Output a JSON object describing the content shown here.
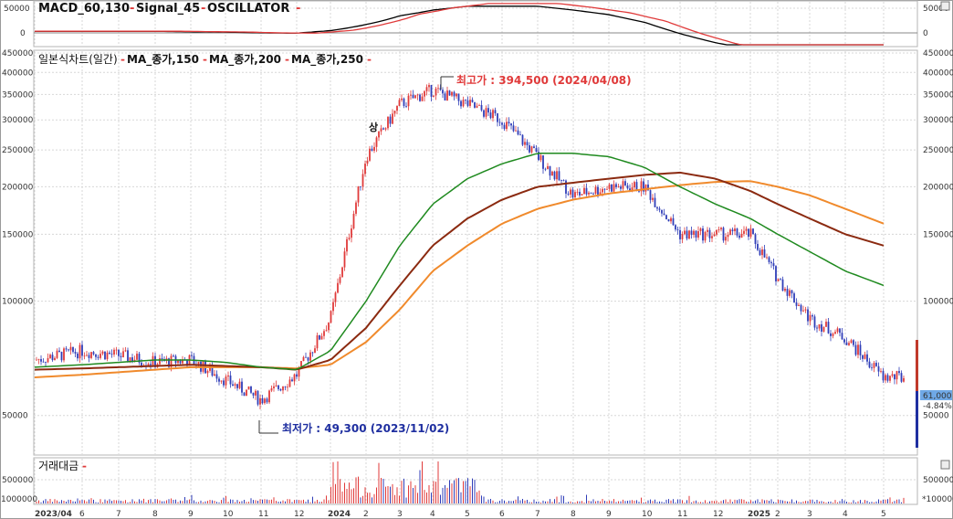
{
  "panels": {
    "macd": {
      "title": "MACD_60,130",
      "signal_label": "Signal_45",
      "osc_label": "OSCILLATOR",
      "yticks": [
        "50000",
        "0",
        "-50000"
      ]
    },
    "price": {
      "title": "일본식차트(일간)",
      "ma_labels": [
        "MA_종가,150",
        "MA_종가,200",
        "MA_종가,250"
      ],
      "high_label": "최고가 : 394,500 (2024/04/08)",
      "low_label": "최저가 : 49,300 (2023/11/02)",
      "sang_label": "상",
      "current_price": "61,000",
      "current_change": "-4.84%",
      "yticks": [
        "450000",
        "400000",
        "350000",
        "300000",
        "250000",
        "200000",
        "150000",
        "100000",
        "50000"
      ]
    },
    "volume": {
      "title": "거래대금",
      "yticks": [
        "500000",
        "1000000"
      ],
      "right_unit": "*100000"
    }
  },
  "x_labels": [
    "2023/04",
    "6",
    "7",
    "8",
    "9",
    "10",
    "11",
    "12",
    "2024",
    "2",
    "3",
    "4",
    "5",
    "6",
    "7",
    "8",
    "9",
    "10",
    "11",
    "12",
    "2025",
    "2",
    "3",
    "4",
    "5"
  ],
  "colors": {
    "up": "#e03a3a",
    "down": "#2f3db8",
    "ma150": "#1f8a1f",
    "ma200": "#8b2a10",
    "ma250": "#f08a2c",
    "macd": "#000000",
    "signal": "#e03a3a",
    "high_text": "#e03a3a",
    "low_text": "#1f2fa0",
    "grid": "#d7d7d7"
  },
  "chart_data": {
    "type": "line",
    "x_label_dates": [
      "2023/04",
      "2023/06",
      "2023/07",
      "2023/08",
      "2023/09",
      "2023/10",
      "2023/11",
      "2023/12",
      "2024/01",
      "2024/02",
      "2024/03",
      "2024/04",
      "2024/05",
      "2024/06",
      "2024/07",
      "2024/08",
      "2024/09",
      "2024/10",
      "2024/11",
      "2024/12",
      "2025/01",
      "2025/02",
      "2025/03",
      "2025/04",
      "2025/05"
    ],
    "price_approx_close_by_month": [
      70000,
      74000,
      72000,
      69000,
      70000,
      62000,
      55000,
      64000,
      90000,
      240000,
      330000,
      360000,
      330000,
      300000,
      240000,
      190000,
      200000,
      200000,
      150000,
      150000,
      150000,
      115000,
      90000,
      80000,
      63000
    ],
    "series": [
      {
        "name": "MA_종가,150",
        "values": [
          67000,
          68000,
          69000,
          70000,
          70000,
          69000,
          67000,
          66000,
          74000,
          100000,
          140000,
          180000,
          210000,
          230000,
          245000,
          245000,
          240000,
          225000,
          200000,
          180000,
          165000,
          150000,
          135000,
          120000,
          110000
        ]
      },
      {
        "name": "MA_종가,200",
        "values": [
          66000,
          66500,
          67000,
          67500,
          68000,
          67500,
          67000,
          66000,
          70000,
          85000,
          110000,
          140000,
          165000,
          185000,
          200000,
          205000,
          210000,
          215000,
          218000,
          210000,
          195000,
          180000,
          165000,
          150000,
          140000
        ]
      },
      {
        "name": "MA_종가,250",
        "values": [
          63000,
          64000,
          65000,
          66000,
          67000,
          67000,
          67000,
          66500,
          68000,
          78000,
          95000,
          120000,
          140000,
          160000,
          175000,
          185000,
          192000,
          197000,
          202000,
          206000,
          207000,
          200000,
          190000,
          175000,
          160000
        ]
      }
    ],
    "high": {
      "value": 394500,
      "date": "2024/04/08"
    },
    "low": {
      "value": 49300,
      "date": "2023/11/02"
    },
    "last": {
      "value": 61000,
      "change_pct": -4.84
    },
    "ylim": [
      40000,
      450000
    ],
    "y_scale": "log",
    "grid": true
  }
}
